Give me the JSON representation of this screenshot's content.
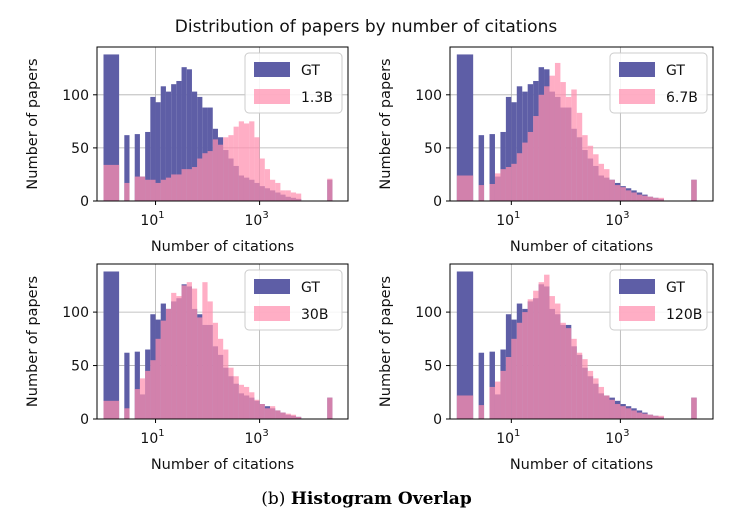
{
  "figure": {
    "suptitle": "Distribution of papers by number of citations",
    "caption_label": "(b)",
    "caption_text": "Histogram Overlap",
    "colors": {
      "gt": "#5e5ea6",
      "model": "#ff8fae",
      "overlap": "#de6a9a",
      "grid": "#b0b0b0"
    }
  },
  "chart_data": [
    {
      "type": "bar",
      "title": "",
      "xlabel": "Number of citations",
      "ylabel": "Number of papers",
      "xscale": "log",
      "xlim": [
        0.75,
        50000
      ],
      "ylim": [
        0,
        145
      ],
      "xticks": [
        {
          "value": 10,
          "base": "10",
          "exp": "1"
        },
        {
          "value": 1000,
          "base": "10",
          "exp": "3"
        }
      ],
      "yticks": [
        0,
        50,
        100
      ],
      "grid": true,
      "legend_position": "top-right",
      "bin_edges_log10": [
        0.0,
        0.3,
        0.4,
        0.5,
        0.6,
        0.7,
        0.8,
        0.9,
        1.0,
        1.1,
        1.2,
        1.3,
        1.4,
        1.5,
        1.6,
        1.7,
        1.8,
        1.9,
        2.0,
        2.1,
        2.2,
        2.3,
        2.4,
        2.5,
        2.6,
        2.7,
        2.8,
        2.9,
        3.0,
        3.1,
        3.2,
        3.3,
        3.4,
        3.5,
        3.6,
        3.7,
        3.8,
        4.3,
        4.4
      ],
      "series": [
        {
          "name": "GT",
          "role": "gt",
          "values": [
            138,
            0,
            62,
            0,
            63,
            23,
            65,
            98,
            93,
            108,
            103,
            110,
            113,
            126,
            124,
            103,
            98,
            88,
            88,
            68,
            60,
            48,
            40,
            33,
            24,
            22,
            20,
            17,
            14,
            12,
            10,
            8,
            6,
            4,
            3,
            2,
            0,
            20
          ]
        },
        {
          "name": "1.3B",
          "role": "model",
          "values": [
            34,
            0,
            17,
            0,
            23,
            23,
            20,
            20,
            17,
            20,
            22,
            25,
            25,
            30,
            30,
            32,
            40,
            45,
            47,
            58,
            53,
            60,
            62,
            70,
            75,
            73,
            75,
            60,
            40,
            30,
            20,
            17,
            10,
            10,
            8,
            7,
            0,
            21
          ]
        }
      ]
    },
    {
      "type": "bar",
      "title": "",
      "xlabel": "Number of citations",
      "ylabel": "Number of papers",
      "xscale": "log",
      "xlim": [
        0.75,
        50000
      ],
      "ylim": [
        0,
        145
      ],
      "xticks": [
        {
          "value": 10,
          "base": "10",
          "exp": "1"
        },
        {
          "value": 1000,
          "base": "10",
          "exp": "3"
        }
      ],
      "yticks": [
        0,
        50,
        100
      ],
      "grid": true,
      "legend_position": "top-right",
      "bin_edges_log10": [
        0.0,
        0.3,
        0.4,
        0.5,
        0.6,
        0.7,
        0.8,
        0.9,
        1.0,
        1.1,
        1.2,
        1.3,
        1.4,
        1.5,
        1.6,
        1.7,
        1.8,
        1.9,
        2.0,
        2.1,
        2.2,
        2.3,
        2.4,
        2.5,
        2.6,
        2.7,
        2.8,
        2.9,
        3.0,
        3.1,
        3.2,
        3.3,
        3.4,
        3.5,
        3.6,
        3.7,
        3.8,
        4.3,
        4.4
      ],
      "series": [
        {
          "name": "GT",
          "role": "gt",
          "values": [
            138,
            0,
            62,
            0,
            63,
            23,
            65,
            98,
            93,
            108,
            103,
            110,
            113,
            126,
            124,
            103,
            98,
            88,
            88,
            68,
            60,
            48,
            40,
            33,
            24,
            22,
            20,
            17,
            14,
            12,
            10,
            8,
            6,
            4,
            3,
            2,
            0,
            20
          ]
        },
        {
          "name": "6.7B",
          "role": "model",
          "values": [
            24,
            0,
            15,
            0,
            16,
            26,
            30,
            32,
            35,
            45,
            55,
            65,
            80,
            100,
            108,
            118,
            130,
            112,
            98,
            105,
            83,
            62,
            52,
            44,
            35,
            30,
            20,
            15,
            13,
            10,
            8,
            6,
            5,
            4,
            3,
            3,
            0,
            20
          ]
        }
      ]
    },
    {
      "type": "bar",
      "title": "",
      "xlabel": "Number of citations",
      "ylabel": "Number of papers",
      "xscale": "log",
      "xlim": [
        0.75,
        50000
      ],
      "ylim": [
        0,
        145
      ],
      "xticks": [
        {
          "value": 10,
          "base": "10",
          "exp": "1"
        },
        {
          "value": 1000,
          "base": "10",
          "exp": "3"
        }
      ],
      "yticks": [
        0,
        50,
        100
      ],
      "grid": true,
      "legend_position": "top-right",
      "bin_edges_log10": [
        0.0,
        0.3,
        0.4,
        0.5,
        0.6,
        0.7,
        0.8,
        0.9,
        1.0,
        1.1,
        1.2,
        1.3,
        1.4,
        1.5,
        1.6,
        1.7,
        1.8,
        1.9,
        2.0,
        2.1,
        2.2,
        2.3,
        2.4,
        2.5,
        2.6,
        2.7,
        2.8,
        2.9,
        3.0,
        3.1,
        3.2,
        3.3,
        3.4,
        3.5,
        3.6,
        3.7,
        3.8,
        4.3,
        4.4
      ],
      "series": [
        {
          "name": "GT",
          "role": "gt",
          "values": [
            138,
            0,
            62,
            0,
            63,
            23,
            65,
            98,
            93,
            108,
            103,
            110,
            113,
            126,
            124,
            103,
            98,
            88,
            88,
            68,
            60,
            48,
            40,
            33,
            24,
            22,
            20,
            17,
            14,
            12,
            10,
            8,
            6,
            4,
            3,
            2,
            0,
            20
          ]
        },
        {
          "name": "30B",
          "role": "model",
          "values": [
            17,
            0,
            10,
            0,
            28,
            38,
            45,
            55,
            75,
            92,
            103,
            118,
            115,
            125,
            128,
            122,
            95,
            128,
            110,
            90,
            75,
            65,
            48,
            40,
            32,
            30,
            25,
            18,
            14,
            10,
            12,
            8,
            6,
            5,
            4,
            2,
            0,
            20
          ]
        }
      ]
    },
    {
      "type": "bar",
      "title": "",
      "xlabel": "Number of citations",
      "ylabel": "Number of papers",
      "xscale": "log",
      "xlim": [
        0.75,
        50000
      ],
      "ylim": [
        0,
        145
      ],
      "xticks": [
        {
          "value": 10,
          "base": "10",
          "exp": "1"
        },
        {
          "value": 1000,
          "base": "10",
          "exp": "3"
        }
      ],
      "yticks": [
        0,
        50,
        100
      ],
      "grid": true,
      "legend_position": "top-right",
      "bin_edges_log10": [
        0.0,
        0.3,
        0.4,
        0.5,
        0.6,
        0.7,
        0.8,
        0.9,
        1.0,
        1.1,
        1.2,
        1.3,
        1.4,
        1.5,
        1.6,
        1.7,
        1.8,
        1.9,
        2.0,
        2.1,
        2.2,
        2.3,
        2.4,
        2.5,
        2.6,
        2.7,
        2.8,
        2.9,
        3.0,
        3.1,
        3.2,
        3.3,
        3.4,
        3.5,
        3.6,
        3.7,
        3.8,
        4.3,
        4.4
      ],
      "series": [
        {
          "name": "GT",
          "role": "gt",
          "values": [
            138,
            0,
            62,
            0,
            63,
            23,
            65,
            98,
            93,
            108,
            103,
            110,
            113,
            126,
            124,
            103,
            98,
            88,
            88,
            68,
            60,
            48,
            40,
            33,
            24,
            22,
            20,
            17,
            14,
            12,
            10,
            8,
            6,
            4,
            3,
            2,
            0,
            20
          ]
        },
        {
          "name": "120B",
          "role": "model",
          "values": [
            22,
            0,
            13,
            0,
            30,
            35,
            45,
            58,
            75,
            90,
            100,
            112,
            120,
            128,
            135,
            115,
            108,
            90,
            85,
            75,
            62,
            56,
            45,
            38,
            30,
            22,
            18,
            14,
            12,
            10,
            8,
            6,
            5,
            4,
            3,
            3,
            0,
            20
          ]
        }
      ]
    }
  ]
}
